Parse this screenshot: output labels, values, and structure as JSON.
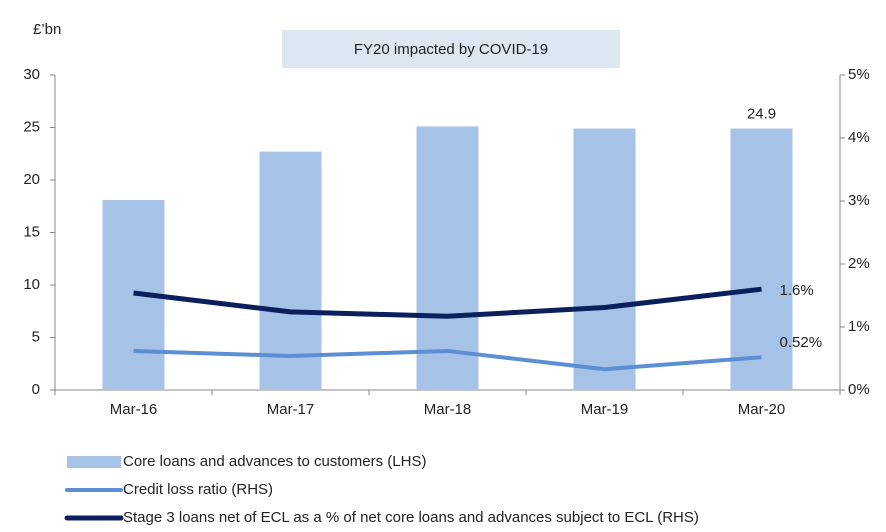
{
  "chart_data": {
    "type": "bar-line",
    "y_label": "£’bn",
    "annotation": "FY20 impacted by COVID-19",
    "categories": [
      "Mar-16",
      "Mar-17",
      "Mar-18",
      "Mar-19",
      "Mar-20"
    ],
    "series": [
      {
        "name": "Core loans and advances to customers (LHS)",
        "type": "bar",
        "color": "#a7c2e7",
        "values": [
          18.1,
          22.7,
          25.1,
          24.9,
          24.9
        ],
        "value_labels": [
          null,
          null,
          null,
          null,
          "24.9"
        ]
      },
      {
        "name": "Credit loss ratio (RHS)",
        "type": "line",
        "axis": "y2",
        "color": "#5b8ed3",
        "values": [
          0.62,
          0.54,
          0.62,
          0.33,
          0.52
        ],
        "value_labels": [
          null,
          null,
          null,
          null,
          "0.52%"
        ]
      },
      {
        "name": "Stage 3 loans net of ECL as a % of net core loans and advances subject to ECL (RHS)",
        "type": "line",
        "axis": "y2",
        "color": "#0b1f5c",
        "values": [
          1.54,
          1.24,
          1.17,
          1.31,
          1.6
        ],
        "value_labels": [
          null,
          null,
          null,
          null,
          "1.6%"
        ]
      }
    ],
    "ylim": [
      0,
      30
    ],
    "yticks": [
      0,
      5,
      10,
      15,
      20,
      25,
      30
    ],
    "y2lim": [
      0,
      5
    ],
    "y2ticks": [
      {
        "value": 0,
        "label": "0%"
      },
      {
        "value": 1,
        "label": "1%"
      },
      {
        "value": 2,
        "label": "2%"
      },
      {
        "value": 3,
        "label": "3%"
      },
      {
        "value": 4,
        "label": "4%"
      },
      {
        "value": 5,
        "label": "5%"
      }
    ]
  }
}
